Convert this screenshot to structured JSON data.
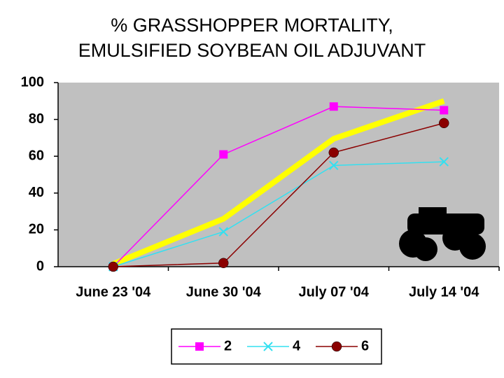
{
  "chart_data": {
    "type": "line",
    "title": [
      "% GRASSHOPPER MORTALITY,",
      "EMULSIFIED SOYBEAN OIL ADJUVANT"
    ],
    "categories": [
      "June 23 '04",
      "June 30 '04",
      "July 07 '04",
      "July 14 '04"
    ],
    "series": [
      {
        "name": "2",
        "color": "#ff00ff",
        "marker": "square",
        "values": [
          0,
          61,
          87,
          85
        ]
      },
      {
        "name": "4",
        "color": "#33e0f0",
        "marker": "x",
        "values": [
          0,
          19,
          55,
          57
        ]
      },
      {
        "name": "6",
        "color": "#8b0000",
        "marker": "circle",
        "values": [
          0,
          2,
          62,
          78
        ]
      },
      {
        "color": "#ffff00",
        "marker": "none",
        "values": [
          1.5,
          26,
          69.5,
          90
        ]
      }
    ],
    "ylim": [
      0,
      100
    ],
    "yticks": [
      0,
      20,
      40,
      60,
      80,
      100
    ],
    "grid": false
  }
}
